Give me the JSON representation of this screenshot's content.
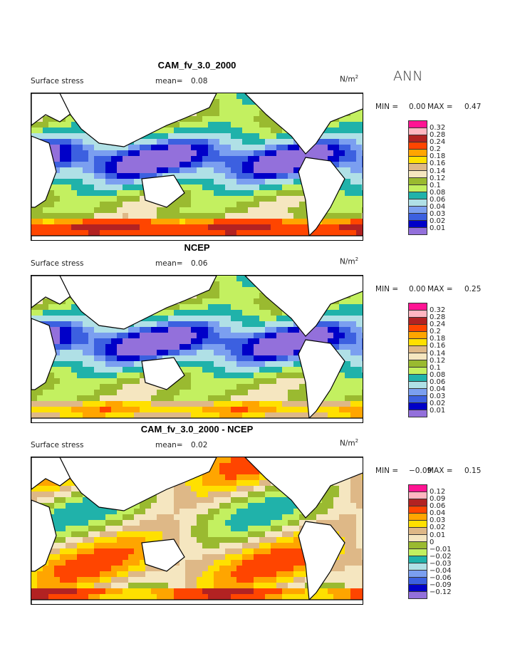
{
  "season": "ANN",
  "panels": [
    {
      "title": "CAM_fv_3.0_2000",
      "variable": "Surface stress",
      "mean_label": "mean=",
      "mean": "0.08",
      "units": "N/m",
      "units_sup": "2",
      "min_label": "MIN =",
      "min": "0.00",
      "max_label": "MAX =",
      "max": "0.47",
      "levels": [
        "0.32",
        "0.28",
        "0.24",
        "0.2",
        "0.18",
        "0.16",
        "0.14",
        "0.12",
        "0.1",
        "0.08",
        "0.06",
        "0.04",
        "0.03",
        "0.02",
        "0.01"
      ]
    },
    {
      "title": "NCEP",
      "variable": "Surface stress",
      "mean_label": "mean=",
      "mean": "0.06",
      "units": "N/m",
      "units_sup": "2",
      "min_label": "MIN =",
      "min": "0.00",
      "max_label": "MAX =",
      "max": "0.25",
      "levels": [
        "0.32",
        "0.28",
        "0.24",
        "0.2",
        "0.18",
        "0.16",
        "0.14",
        "0.12",
        "0.1",
        "0.08",
        "0.06",
        "0.04",
        "0.03",
        "0.02",
        "0.01"
      ]
    },
    {
      "title": "CAM_fv_3.0_2000 - NCEP",
      "variable": "Surface stress",
      "mean_label": "mean=",
      "mean": "0.02",
      "units": "N/m",
      "units_sup": "2",
      "min_label": "MIN =",
      "min": "−0.09",
      "max_label": "MAX =",
      "max": "0.15",
      "levels": [
        "0.12",
        "0.09",
        "0.06",
        "0.04",
        "0.03",
        "0.02",
        "0.01",
        "0",
        "−0.01",
        "−0.02",
        "−0.03",
        "−0.04",
        "−0.06",
        "−0.09",
        "−0.12"
      ]
    }
  ],
  "colors": [
    "#ff1493",
    "#ffb6c1",
    "#b22222",
    "#ff4500",
    "#ffa500",
    "#ffe000",
    "#deb887",
    "#f5e6c0",
    "#9aba30",
    "#c3f060",
    "#20b2aa",
    "#b0e0e6",
    "#7b9ff0",
    "#3c60e0",
    "#0000c8",
    "#9370db"
  ]
}
